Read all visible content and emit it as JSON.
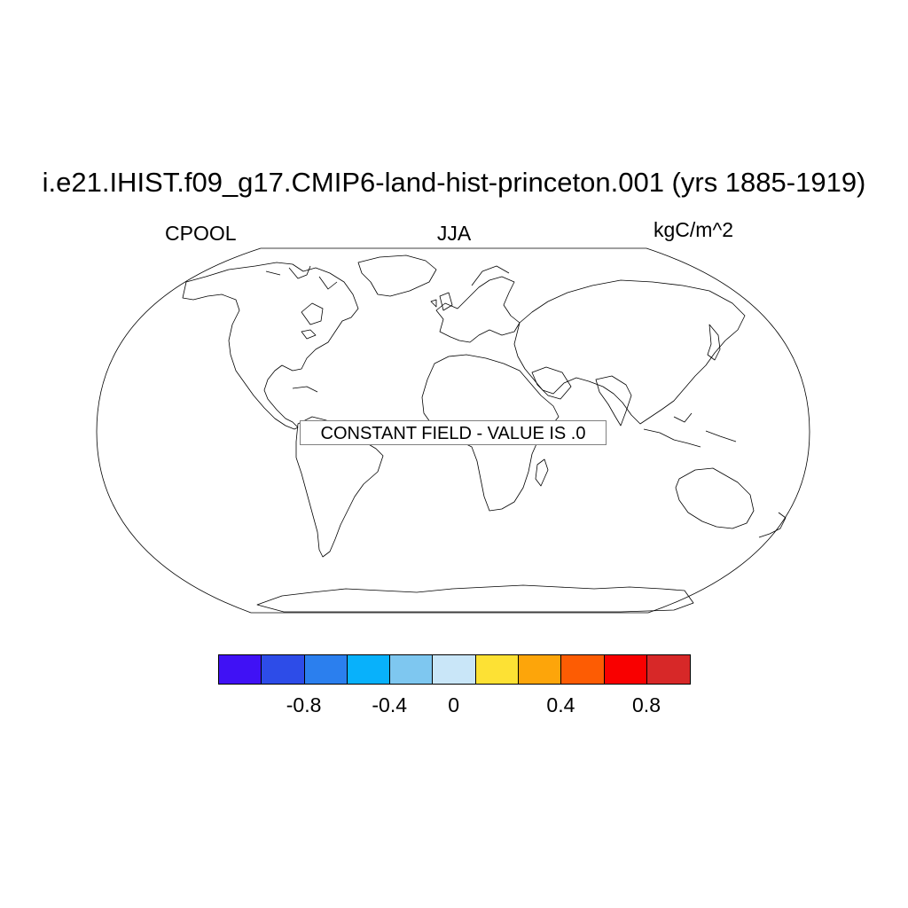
{
  "title": "i.e21.IHIST.f09_g17.CMIP6-land-hist-princeton.001 (yrs 1885-1919)",
  "variable": "CPOOL",
  "season": "JJA",
  "units": "kgC/m^2",
  "notice": "CONSTANT FIELD - VALUE IS .0",
  "colorbar": {
    "colors": [
      "#4011f5",
      "#2d4ce8",
      "#2b7fee",
      "#08b1fb",
      "#7ec7f0",
      "#c9e6f8",
      "#fde134",
      "#fda50a",
      "#fd5c03",
      "#f90000",
      "#d72828"
    ],
    "labels": [
      "-0.8",
      "-0.4",
      "0",
      "0.4",
      "0.8"
    ]
  }
}
